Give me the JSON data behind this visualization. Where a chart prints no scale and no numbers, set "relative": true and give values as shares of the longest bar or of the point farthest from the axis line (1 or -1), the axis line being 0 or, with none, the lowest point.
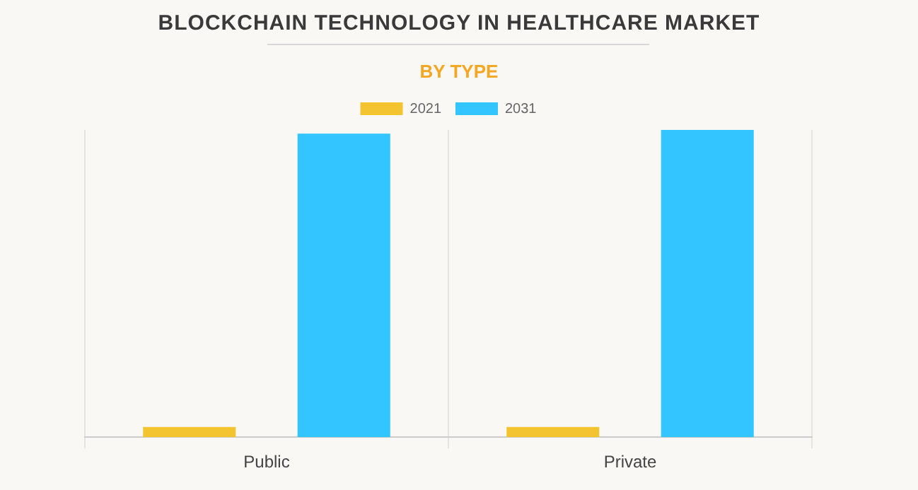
{
  "chart_data": {
    "type": "bar",
    "title": "BLOCKCHAIN TECHNOLOGY IN HEALTHCARE MARKET",
    "subtitle": "BY TYPE",
    "categories": [
      "Public",
      "Private"
    ],
    "relative": true,
    "series": [
      {
        "name": "2021",
        "color": "#f4c430",
        "values": [
          0.033,
          0.033
        ]
      },
      {
        "name": "2031",
        "color": "#33c5ff",
        "values": [
          0.988,
          1
        ]
      }
    ],
    "grid": true,
    "legend": "top"
  }
}
